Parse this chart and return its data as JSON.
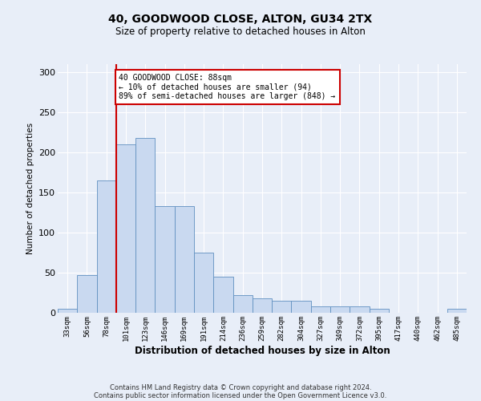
{
  "title1": "40, GOODWOOD CLOSE, ALTON, GU34 2TX",
  "title2": "Size of property relative to detached houses in Alton",
  "xlabel": "Distribution of detached houses by size in Alton",
  "ylabel": "Number of detached properties",
  "categories": [
    "33sqm",
    "56sqm",
    "78sqm",
    "101sqm",
    "123sqm",
    "146sqm",
    "169sqm",
    "191sqm",
    "214sqm",
    "236sqm",
    "259sqm",
    "282sqm",
    "304sqm",
    "327sqm",
    "349sqm",
    "372sqm",
    "395sqm",
    "417sqm",
    "440sqm",
    "462sqm",
    "485sqm"
  ],
  "values": [
    5,
    47,
    165,
    210,
    218,
    133,
    133,
    75,
    45,
    22,
    18,
    15,
    15,
    8,
    8,
    8,
    5,
    0,
    0,
    0,
    5
  ],
  "bar_color": "#c9d9f0",
  "bar_edge_color": "#6090c0",
  "annotation_box_color": "#ffffff",
  "annotation_border_color": "#cc0000",
  "vline_color": "#cc0000",
  "annotation_text": "40 GOODWOOD CLOSE: 88sqm\n← 10% of detached houses are smaller (94)\n89% of semi-detached houses are larger (848) →",
  "footer1": "Contains HM Land Registry data © Crown copyright and database right 2024.",
  "footer2": "Contains public sector information licensed under the Open Government Licence v3.0.",
  "ylim": [
    0,
    310
  ],
  "yticks": [
    0,
    50,
    100,
    150,
    200,
    250,
    300
  ],
  "bg_color": "#e8eef8",
  "plot_bg_color": "#e8eef8"
}
